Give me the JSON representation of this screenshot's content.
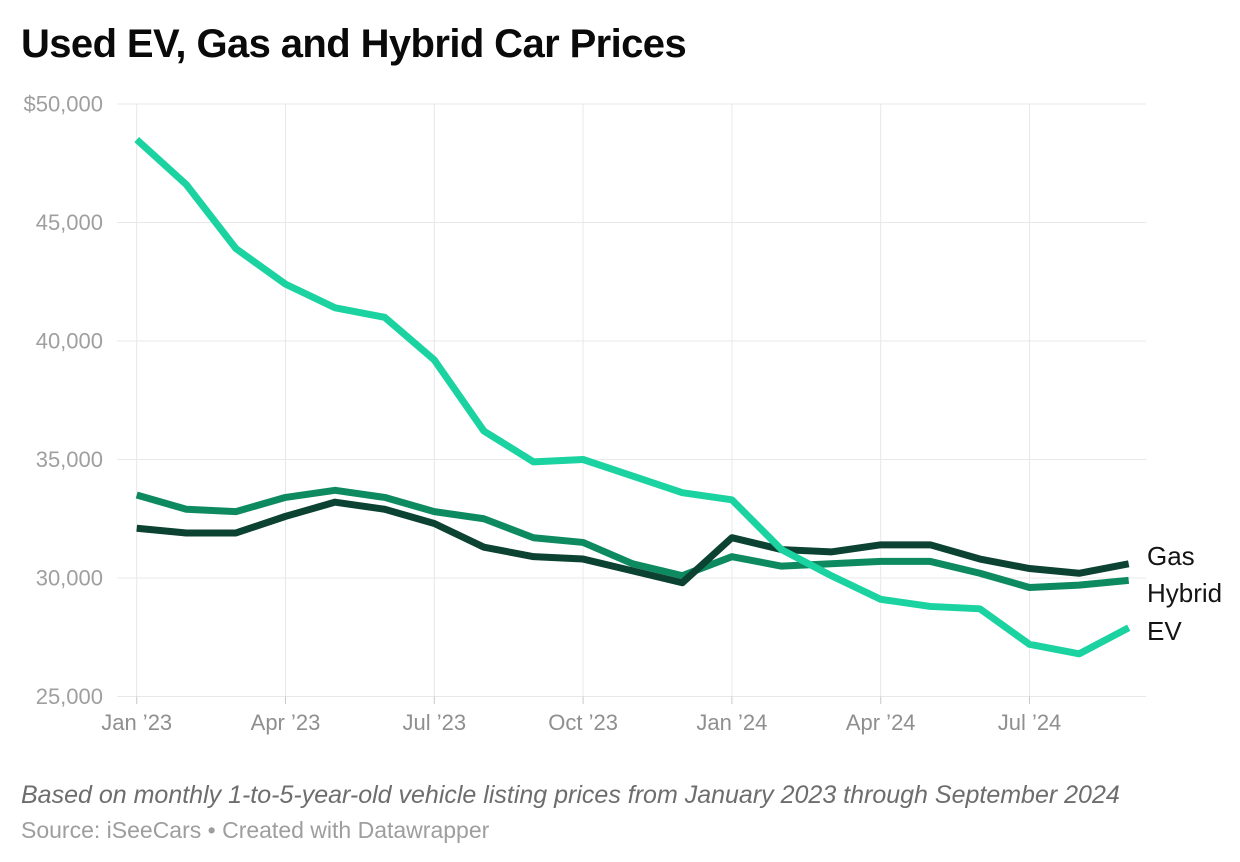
{
  "title": "Used EV, Gas and Hybrid Car Prices",
  "footnote": "Based on monthly 1-to-5-year-old vehicle listing prices from January 2023 through September 2024",
  "source": "Source: iSeeCars • Created with Datawrapper",
  "colors": {
    "gas": "#0b4232",
    "hybrid": "#0d8a60",
    "ev": "#1bd3a0",
    "grid": "#e8e8e8",
    "tick": "#c9c9c9",
    "axis_text_y": "#9f9f9f",
    "axis_text_x": "#8f8f8f",
    "end_label": "#141414",
    "title_text": "#0a0a0a"
  },
  "chart_data": {
    "type": "line",
    "title": "Used EV, Gas and Hybrid Car Prices",
    "xlabel": "",
    "ylabel": "",
    "ylim": [
      25000,
      50000
    ],
    "grid": true,
    "legend_position": "line-end-labels",
    "x": [
      "Jan 2023",
      "Feb 2023",
      "Mar 2023",
      "Apr 2023",
      "May 2023",
      "Jun 2023",
      "Jul 2023",
      "Aug 2023",
      "Sep 2023",
      "Oct 2023",
      "Nov 2023",
      "Dec 2023",
      "Jan 2024",
      "Feb 2024",
      "Mar 2024",
      "Apr 2024",
      "May 2024",
      "Jun 2024",
      "Jul 2024",
      "Aug 2024",
      "Sep 2024"
    ],
    "x_ticks": [
      {
        "index": 0,
        "label": "Jan ’23"
      },
      {
        "index": 3,
        "label": "Apr ’23"
      },
      {
        "index": 6,
        "label": "Jul ’23"
      },
      {
        "index": 9,
        "label": "Oct ’23"
      },
      {
        "index": 12,
        "label": "Jan ’24"
      },
      {
        "index": 15,
        "label": "Apr ’24"
      },
      {
        "index": 18,
        "label": "Jul ’24"
      }
    ],
    "y_ticks": [
      {
        "value": 50000,
        "label": "$50,000"
      },
      {
        "value": 45000,
        "label": "45,000"
      },
      {
        "value": 40000,
        "label": "40,000"
      },
      {
        "value": 35000,
        "label": "35,000"
      },
      {
        "value": 30000,
        "label": "30,000"
      },
      {
        "value": 25000,
        "label": "25,000"
      }
    ],
    "series": [
      {
        "name": "Gas",
        "color": "#0b4232",
        "values": [
          32100,
          31900,
          31900,
          32600,
          33200,
          32900,
          32300,
          31300,
          30900,
          30800,
          30300,
          29800,
          31700,
          31200,
          31100,
          31400,
          31400,
          30800,
          30400,
          30200,
          30600
        ]
      },
      {
        "name": "Hybrid",
        "color": "#0d8a60",
        "values": [
          33500,
          32900,
          32800,
          33400,
          33700,
          33400,
          32800,
          32500,
          31700,
          31500,
          30600,
          30100,
          30900,
          30500,
          30600,
          30700,
          30700,
          30200,
          29600,
          29700,
          29900
        ]
      },
      {
        "name": "EV",
        "color": "#1bd3a0",
        "values": [
          48500,
          46600,
          43900,
          42400,
          41400,
          41000,
          39200,
          36200,
          34900,
          35000,
          34300,
          33600,
          33300,
          31200,
          30100,
          29100,
          28800,
          28700,
          27200,
          26800,
          27900
        ]
      }
    ]
  }
}
